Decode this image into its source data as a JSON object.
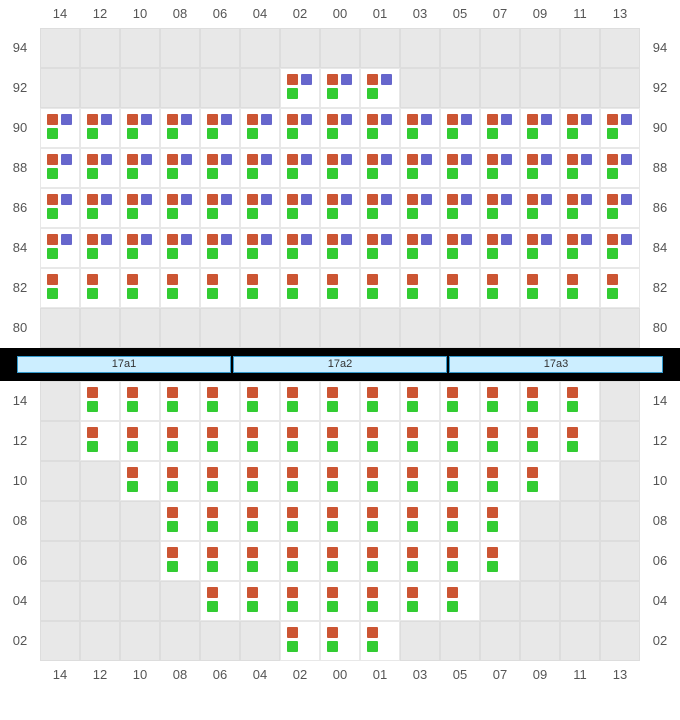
{
  "colors": {
    "orange": "#cc5533",
    "purple": "#6666cc",
    "green": "#33cc33",
    "grid_bg": "#e8e8e8",
    "seat_bg": "#ffffff",
    "divider": "#000000",
    "stage_bg": "#cceeff",
    "stage_border": "#3399cc"
  },
  "columns": [
    "14",
    "12",
    "10",
    "08",
    "06",
    "04",
    "02",
    "00",
    "01",
    "03",
    "05",
    "07",
    "09",
    "11",
    "13"
  ],
  "upper": {
    "rows": [
      "94",
      "92",
      "90",
      "88",
      "86",
      "84",
      "82",
      "80"
    ],
    "seats": {
      "94": [],
      "92": [
        {
          "c": "02",
          "t": "A"
        },
        {
          "c": "00",
          "t": "A"
        },
        {
          "c": "01",
          "t": "A"
        }
      ],
      "90": [
        {
          "c": "14",
          "t": "A"
        },
        {
          "c": "12",
          "t": "A"
        },
        {
          "c": "10",
          "t": "A"
        },
        {
          "c": "08",
          "t": "A"
        },
        {
          "c": "06",
          "t": "A"
        },
        {
          "c": "04",
          "t": "A"
        },
        {
          "c": "02",
          "t": "A"
        },
        {
          "c": "00",
          "t": "A"
        },
        {
          "c": "01",
          "t": "A"
        },
        {
          "c": "03",
          "t": "A"
        },
        {
          "c": "05",
          "t": "A"
        },
        {
          "c": "07",
          "t": "A"
        },
        {
          "c": "09",
          "t": "A"
        },
        {
          "c": "11",
          "t": "A"
        },
        {
          "c": "13",
          "t": "A"
        }
      ],
      "88": [
        {
          "c": "14",
          "t": "A"
        },
        {
          "c": "12",
          "t": "A"
        },
        {
          "c": "10",
          "t": "A"
        },
        {
          "c": "08",
          "t": "A"
        },
        {
          "c": "06",
          "t": "A"
        },
        {
          "c": "04",
          "t": "A"
        },
        {
          "c": "02",
          "t": "A"
        },
        {
          "c": "00",
          "t": "A"
        },
        {
          "c": "01",
          "t": "A"
        },
        {
          "c": "03",
          "t": "A"
        },
        {
          "c": "05",
          "t": "A"
        },
        {
          "c": "07",
          "t": "A"
        },
        {
          "c": "09",
          "t": "A"
        },
        {
          "c": "11",
          "t": "A"
        },
        {
          "c": "13",
          "t": "A"
        }
      ],
      "86": [
        {
          "c": "14",
          "t": "A"
        },
        {
          "c": "12",
          "t": "A"
        },
        {
          "c": "10",
          "t": "A"
        },
        {
          "c": "08",
          "t": "A"
        },
        {
          "c": "06",
          "t": "A"
        },
        {
          "c": "04",
          "t": "A"
        },
        {
          "c": "02",
          "t": "A"
        },
        {
          "c": "00",
          "t": "A"
        },
        {
          "c": "01",
          "t": "A"
        },
        {
          "c": "03",
          "t": "A"
        },
        {
          "c": "05",
          "t": "A"
        },
        {
          "c": "07",
          "t": "A"
        },
        {
          "c": "09",
          "t": "A"
        },
        {
          "c": "11",
          "t": "A"
        },
        {
          "c": "13",
          "t": "A"
        }
      ],
      "84": [
        {
          "c": "14",
          "t": "A"
        },
        {
          "c": "12",
          "t": "A"
        },
        {
          "c": "10",
          "t": "A"
        },
        {
          "c": "08",
          "t": "A"
        },
        {
          "c": "06",
          "t": "A"
        },
        {
          "c": "04",
          "t": "A"
        },
        {
          "c": "02",
          "t": "A"
        },
        {
          "c": "00",
          "t": "A"
        },
        {
          "c": "01",
          "t": "A"
        },
        {
          "c": "03",
          "t": "A"
        },
        {
          "c": "05",
          "t": "A"
        },
        {
          "c": "07",
          "t": "A"
        },
        {
          "c": "09",
          "t": "A"
        },
        {
          "c": "11",
          "t": "A"
        },
        {
          "c": "13",
          "t": "A"
        }
      ],
      "82": [
        {
          "c": "14",
          "t": "B"
        },
        {
          "c": "12",
          "t": "B"
        },
        {
          "c": "10",
          "t": "B"
        },
        {
          "c": "08",
          "t": "B"
        },
        {
          "c": "06",
          "t": "B"
        },
        {
          "c": "04",
          "t": "B"
        },
        {
          "c": "02",
          "t": "B"
        },
        {
          "c": "00",
          "t": "B"
        },
        {
          "c": "01",
          "t": "B"
        },
        {
          "c": "03",
          "t": "B"
        },
        {
          "c": "05",
          "t": "B"
        },
        {
          "c": "07",
          "t": "B"
        },
        {
          "c": "09",
          "t": "B"
        },
        {
          "c": "11",
          "t": "B"
        },
        {
          "c": "13",
          "t": "B"
        }
      ],
      "80": []
    }
  },
  "stages": [
    "17a1",
    "17a2",
    "17a3"
  ],
  "lower": {
    "rows": [
      "14",
      "12",
      "10",
      "08",
      "06",
      "04",
      "02"
    ],
    "seats": {
      "14": [
        {
          "c": "12",
          "t": "B"
        },
        {
          "c": "10",
          "t": "B"
        },
        {
          "c": "08",
          "t": "B"
        },
        {
          "c": "06",
          "t": "B"
        },
        {
          "c": "04",
          "t": "B"
        },
        {
          "c": "02",
          "t": "B"
        },
        {
          "c": "00",
          "t": "B"
        },
        {
          "c": "01",
          "t": "B"
        },
        {
          "c": "03",
          "t": "B"
        },
        {
          "c": "05",
          "t": "B"
        },
        {
          "c": "07",
          "t": "B"
        },
        {
          "c": "09",
          "t": "B"
        },
        {
          "c": "11",
          "t": "B"
        }
      ],
      "12": [
        {
          "c": "12",
          "t": "B"
        },
        {
          "c": "10",
          "t": "B"
        },
        {
          "c": "08",
          "t": "B"
        },
        {
          "c": "06",
          "t": "B"
        },
        {
          "c": "04",
          "t": "B"
        },
        {
          "c": "02",
          "t": "B"
        },
        {
          "c": "00",
          "t": "B"
        },
        {
          "c": "01",
          "t": "B"
        },
        {
          "c": "03",
          "t": "B"
        },
        {
          "c": "05",
          "t": "B"
        },
        {
          "c": "07",
          "t": "B"
        },
        {
          "c": "09",
          "t": "B"
        },
        {
          "c": "11",
          "t": "B"
        }
      ],
      "10": [
        {
          "c": "10",
          "t": "B"
        },
        {
          "c": "08",
          "t": "B"
        },
        {
          "c": "06",
          "t": "B"
        },
        {
          "c": "04",
          "t": "B"
        },
        {
          "c": "02",
          "t": "B"
        },
        {
          "c": "00",
          "t": "B"
        },
        {
          "c": "01",
          "t": "B"
        },
        {
          "c": "03",
          "t": "B"
        },
        {
          "c": "05",
          "t": "B"
        },
        {
          "c": "07",
          "t": "B"
        },
        {
          "c": "09",
          "t": "B"
        }
      ],
      "08": [
        {
          "c": "08",
          "t": "B"
        },
        {
          "c": "06",
          "t": "B"
        },
        {
          "c": "04",
          "t": "B"
        },
        {
          "c": "02",
          "t": "B"
        },
        {
          "c": "00",
          "t": "B"
        },
        {
          "c": "01",
          "t": "B"
        },
        {
          "c": "03",
          "t": "B"
        },
        {
          "c": "05",
          "t": "B"
        },
        {
          "c": "07",
          "t": "B"
        }
      ],
      "06": [
        {
          "c": "08",
          "t": "B"
        },
        {
          "c": "06",
          "t": "B"
        },
        {
          "c": "04",
          "t": "B"
        },
        {
          "c": "02",
          "t": "B"
        },
        {
          "c": "00",
          "t": "B"
        },
        {
          "c": "01",
          "t": "B"
        },
        {
          "c": "03",
          "t": "B"
        },
        {
          "c": "05",
          "t": "B"
        },
        {
          "c": "07",
          "t": "B"
        }
      ],
      "04": [
        {
          "c": "06",
          "t": "B"
        },
        {
          "c": "04",
          "t": "B"
        },
        {
          "c": "02",
          "t": "B"
        },
        {
          "c": "00",
          "t": "B"
        },
        {
          "c": "01",
          "t": "B"
        },
        {
          "c": "03",
          "t": "B"
        },
        {
          "c": "05",
          "t": "B"
        }
      ],
      "02": [
        {
          "c": "02",
          "t": "B"
        },
        {
          "c": "00",
          "t": "B"
        },
        {
          "c": "01",
          "t": "B"
        }
      ]
    }
  },
  "seat_types": {
    "A": [
      "orange",
      "purple",
      "green",
      "none"
    ],
    "B": [
      "orange",
      "none",
      "green",
      "none"
    ]
  }
}
